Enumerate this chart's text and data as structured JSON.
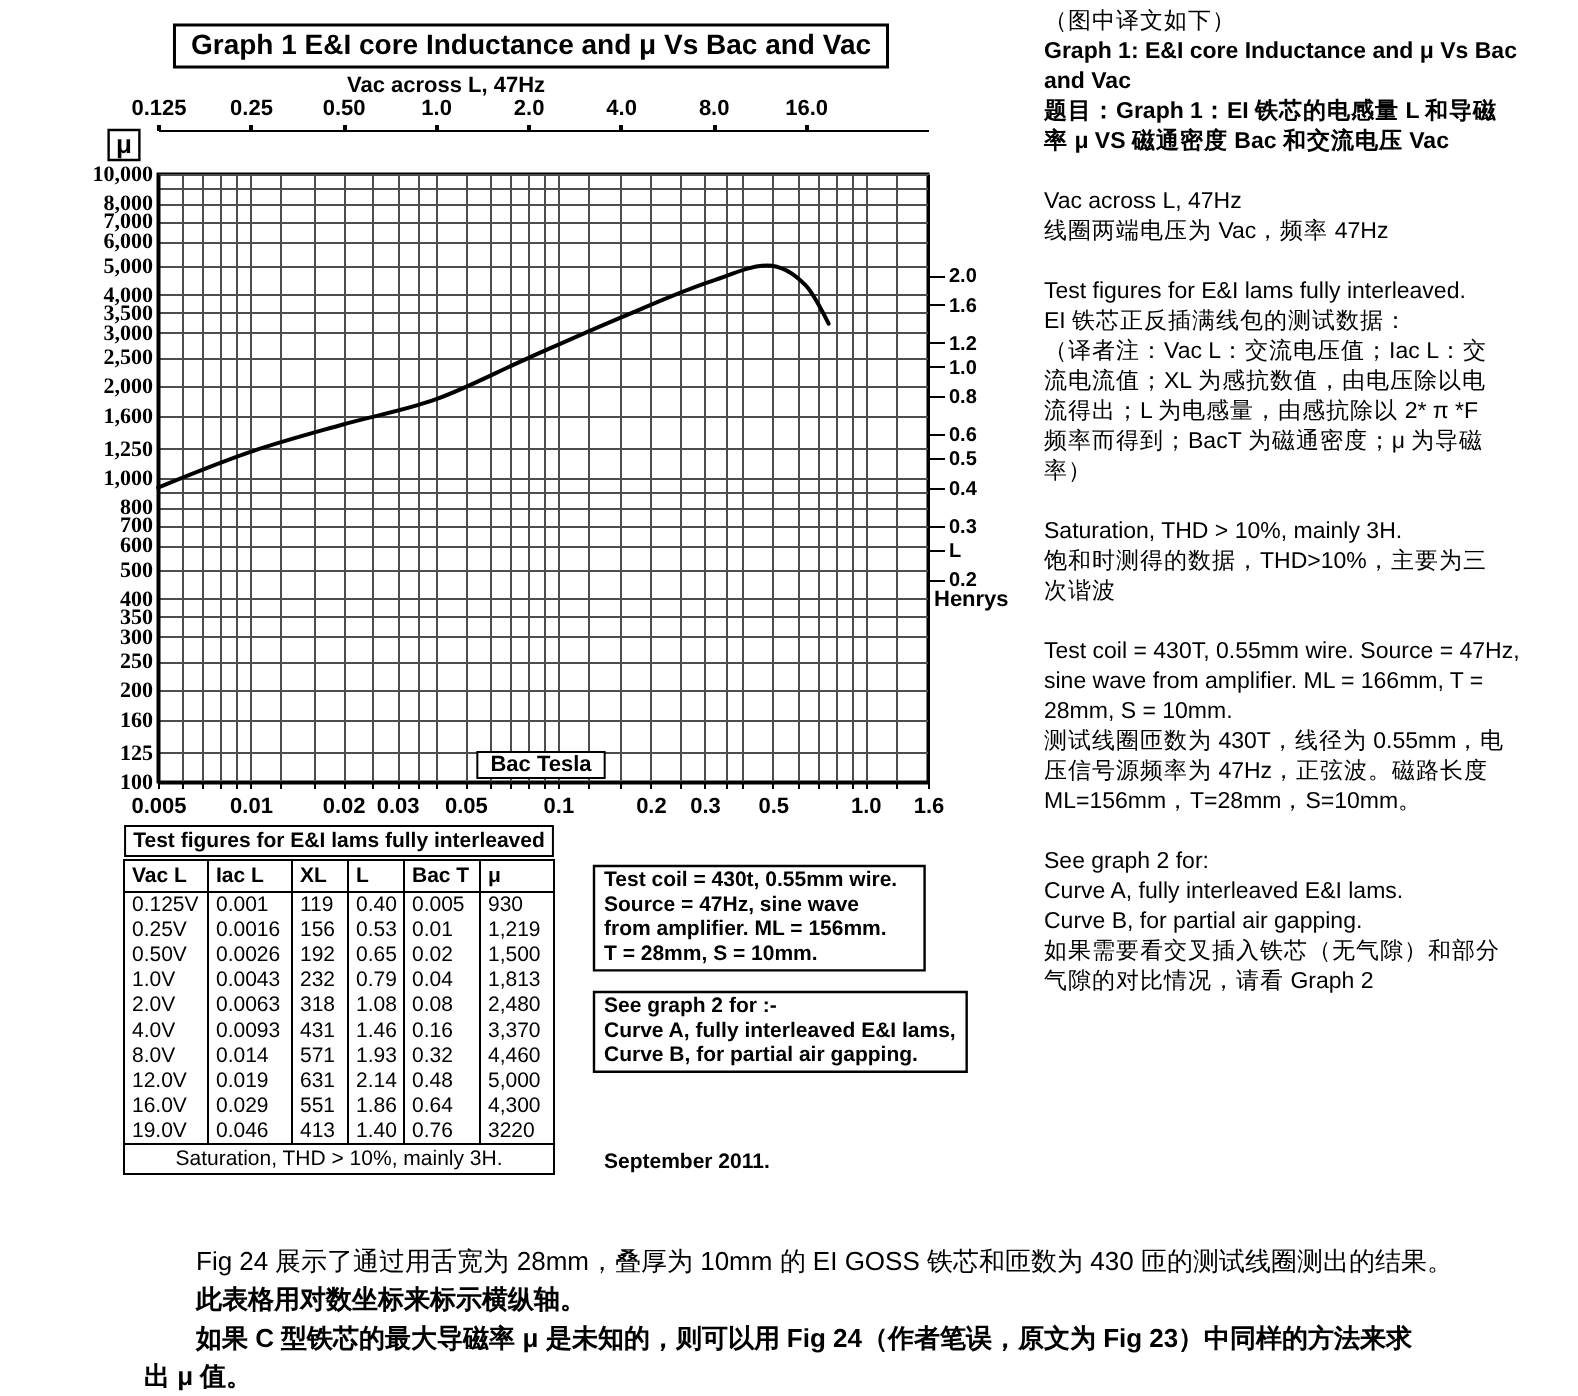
{
  "chart_data": [
    {
      "type": "line",
      "title": "Graph 1 E&I core Inductance and μ Vs Bac and Vac",
      "xlabel": "Bac Tesla",
      "ylabel": "μ",
      "x": [
        0.005,
        0.01,
        0.02,
        0.04,
        0.08,
        0.16,
        0.32,
        0.48,
        0.64,
        0.76
      ],
      "series": [
        {
          "color": "#000000",
          "values": [
            930,
            1219,
            1500,
            1813,
            2480,
            3370,
            4460,
            5000,
            4300,
            3220
          ]
        }
      ],
      "log": "xy",
      "grid": true,
      "xlim": [
        0.005,
        1.6
      ],
      "xticks": [
        0.005,
        {
          "value": 0.006,
          "label": null
        },
        {
          "value": 0.007,
          "label": null
        },
        {
          "value": 0.008,
          "label": null
        },
        {
          "value": 0.009,
          "label": null
        },
        0.01,
        {
          "value": 0.0125,
          "label": null
        },
        {
          "value": 0.016,
          "label": null
        },
        0.02,
        {
          "value": 0.025,
          "label": null
        },
        0.03,
        {
          "value": 0.035,
          "label": null
        },
        {
          "value": 0.04,
          "label": null
        },
        0.05,
        {
          "value": 0.06,
          "label": null
        },
        {
          "value": 0.07,
          "label": null
        },
        {
          "value": 0.08,
          "label": null
        },
        {
          "value": 0.09,
          "label": null
        },
        0.1,
        {
          "value": 0.125,
          "label": null
        },
        {
          "value": 0.16,
          "label": null
        },
        0.2,
        {
          "value": 0.25,
          "label": null
        },
        0.3,
        {
          "value": 0.35,
          "label": null
        },
        {
          "value": 0.4,
          "label": null
        },
        0.5,
        {
          "value": 0.6,
          "label": null
        },
        {
          "value": 0.7,
          "label": null
        },
        {
          "value": 0.8,
          "label": null
        },
        {
          "value": 0.9,
          "label": null
        },
        {
          "value": 1,
          "label": "1.0"
        },
        {
          "value": 1.25,
          "label": null
        },
        1.6
      ],
      "ylim": [
        100,
        10000
      ],
      "yticks": [
        100,
        125,
        160,
        200,
        250,
        300,
        350,
        400,
        500,
        600,
        700,
        800,
        {
          "value": 900,
          "label": null
        },
        {
          "value": 1000,
          "label": "1,000"
        },
        {
          "value": 1250,
          "label": "1,250"
        },
        {
          "value": 1600,
          "label": "1,600"
        },
        {
          "value": 2000,
          "label": "2,000"
        },
        {
          "value": 2500,
          "label": "2,500"
        },
        {
          "value": 3000,
          "label": "3,000"
        },
        {
          "value": 3500,
          "label": "3,500"
        },
        {
          "value": 4000,
          "label": "4,000"
        },
        {
          "value": 5000,
          "label": "5,000"
        },
        {
          "value": 6000,
          "label": "6,000"
        },
        {
          "value": 7000,
          "label": "7,000"
        },
        {
          "value": 8000,
          "label": "8,000"
        },
        {
          "value": 9000,
          "label": null
        },
        {
          "value": 10000,
          "label": "10,000"
        }
      ]
    },
    {
      "type": "line",
      "xlabel": "Vac across L, 47Hz",
      "ylabel": "Henrys",
      "log": "xy",
      "xlim": [
        0.125,
        40
      ],
      "xticks": [
        0.125,
        0.25,
        {
          "value": 0.5,
          "label": "0.50"
        },
        {
          "value": 1,
          "label": "1.0"
        },
        {
          "value": 2,
          "label": "2.0"
        },
        {
          "value": 4,
          "label": "4.0"
        },
        {
          "value": 8,
          "label": "8.0"
        },
        {
          "value": 16,
          "label": "16.0"
        }
      ],
      "ylim": [
        0.043,
        4.3
      ],
      "yticks": [
        0.2,
        {
          "value": 0.25,
          "label": "L"
        },
        0.3,
        0.4,
        0.5,
        0.6,
        0.8,
        {
          "value": 1,
          "label": "1.0"
        },
        1.2,
        1.6,
        {
          "value": 2,
          "label": "2.0"
        }
      ]
    },
    {
      "type": "other",
      "title": "Test figures for E&I lams fully interleaved",
      "categories": [
        "Vac L",
        "Iac L",
        "XL",
        "L",
        "Bac T",
        "μ"
      ],
      "cell_labels": [
        [
          "0.125V",
          "0.001",
          "119",
          "0.40",
          "0.005",
          "930"
        ],
        [
          "0.25V",
          "0.0016",
          "156",
          "0.53",
          "0.01",
          "1,219"
        ],
        [
          "0.50V",
          "0.0026",
          "192",
          "0.65",
          "0.02",
          "1,500"
        ],
        [
          "1.0V",
          "0.0043",
          "232",
          "0.79",
          "0.04",
          "1,813"
        ],
        [
          "2.0V",
          "0.0063",
          "318",
          "1.08",
          "0.08",
          "2,480"
        ],
        [
          "4.0V",
          "0.0093",
          "431",
          "1.46",
          "0.16",
          "3,370"
        ],
        [
          "8.0V",
          "0.014",
          "571",
          "1.93",
          "0.32",
          "4,460"
        ],
        [
          "12.0V",
          "0.019",
          "631",
          "2.14",
          "0.48",
          "5,000"
        ],
        [
          "16.0V",
          "0.029",
          "551",
          "1.86",
          "0.64",
          "4,300"
        ],
        [
          "19.0V",
          "0.046",
          "413",
          "1.40",
          "0.76",
          "3220"
        ]
      ],
      "annotations": [
        "Saturation, THD > 10%, mainly 3H."
      ]
    },
    {
      "type": "other",
      "annotations": [
        "Test coil = 430t, 0.55mm wire.\nSource = 47Hz, sine wave\nfrom amplifier. ML = 156mm.\nT = 28mm, S = 10mm.",
        "See graph 2 for :-\nCurve A, fully interleaved E&I lams,\nCurve B, for partial air gapping.",
        "September 2011."
      ]
    },
    {
      "type": "other",
      "title": "（图中译文如下）",
      "annotations": [
        "Graph 1: E&I core Inductance and μ Vs Bac\nand Vac\n题目：Graph 1：EI 铁芯的电感量 L 和导磁率 μ VS 磁通密度 Bac 和交流电压 Vac",
        "Vac across L, 47Hz\n线圈两端电压为 Vac，频率 47Hz",
        "Test figures for E&I lams fully interleaved.\nEI 铁芯正反插满线包的测试数据：",
        "（译者注：Vac L：交流电压值；Iac L：交流电流值；XL 为感抗数值，由电压除以电流得出；L 为电感量，由感抗除以 2* π *F 频率而得到；BacT 为磁通密度；μ 为导磁率）",
        "Saturation, THD > 10%, mainly 3H.\n饱和时测得的数据，THD>10%，主要为三次谐波",
        "Test coil = 430T, 0.55mm wire. Source = 47Hz,\nsine wave from amplifier. ML = 166mm, T =\n28mm, S = 10mm.\n测试线圈匝数为 430T，线径为 0.55mm，电压信号源频率为 47Hz，正弦波。磁路长度 ML=156mm，T=28mm，S=10mm。",
        "See graph 2 for:\nCurve A, fully interleaved E&I lams.\nCurve B, for partial air gapping.\n如果需要看交叉插入铁芯（无气隙）和部分气隙的对比情况，请看 Graph 2"
      ]
    },
    {
      "type": "other",
      "annotations": [
        "Fig 24 展示了通过用舌宽为 28mm，叠厚为 10mm 的 EI GOSS 铁芯和匝数为 430 匝的测试线圈测出的结果。",
        "此表格用对数坐标来标示横纵轴。",
        "如果 C 型铁芯的最大导磁率 μ 是未知的，则可以用 Fig 24（作者笔误，原文为 Fig 23）中同样的方法来求出 μ 值。"
      ]
    }
  ]
}
